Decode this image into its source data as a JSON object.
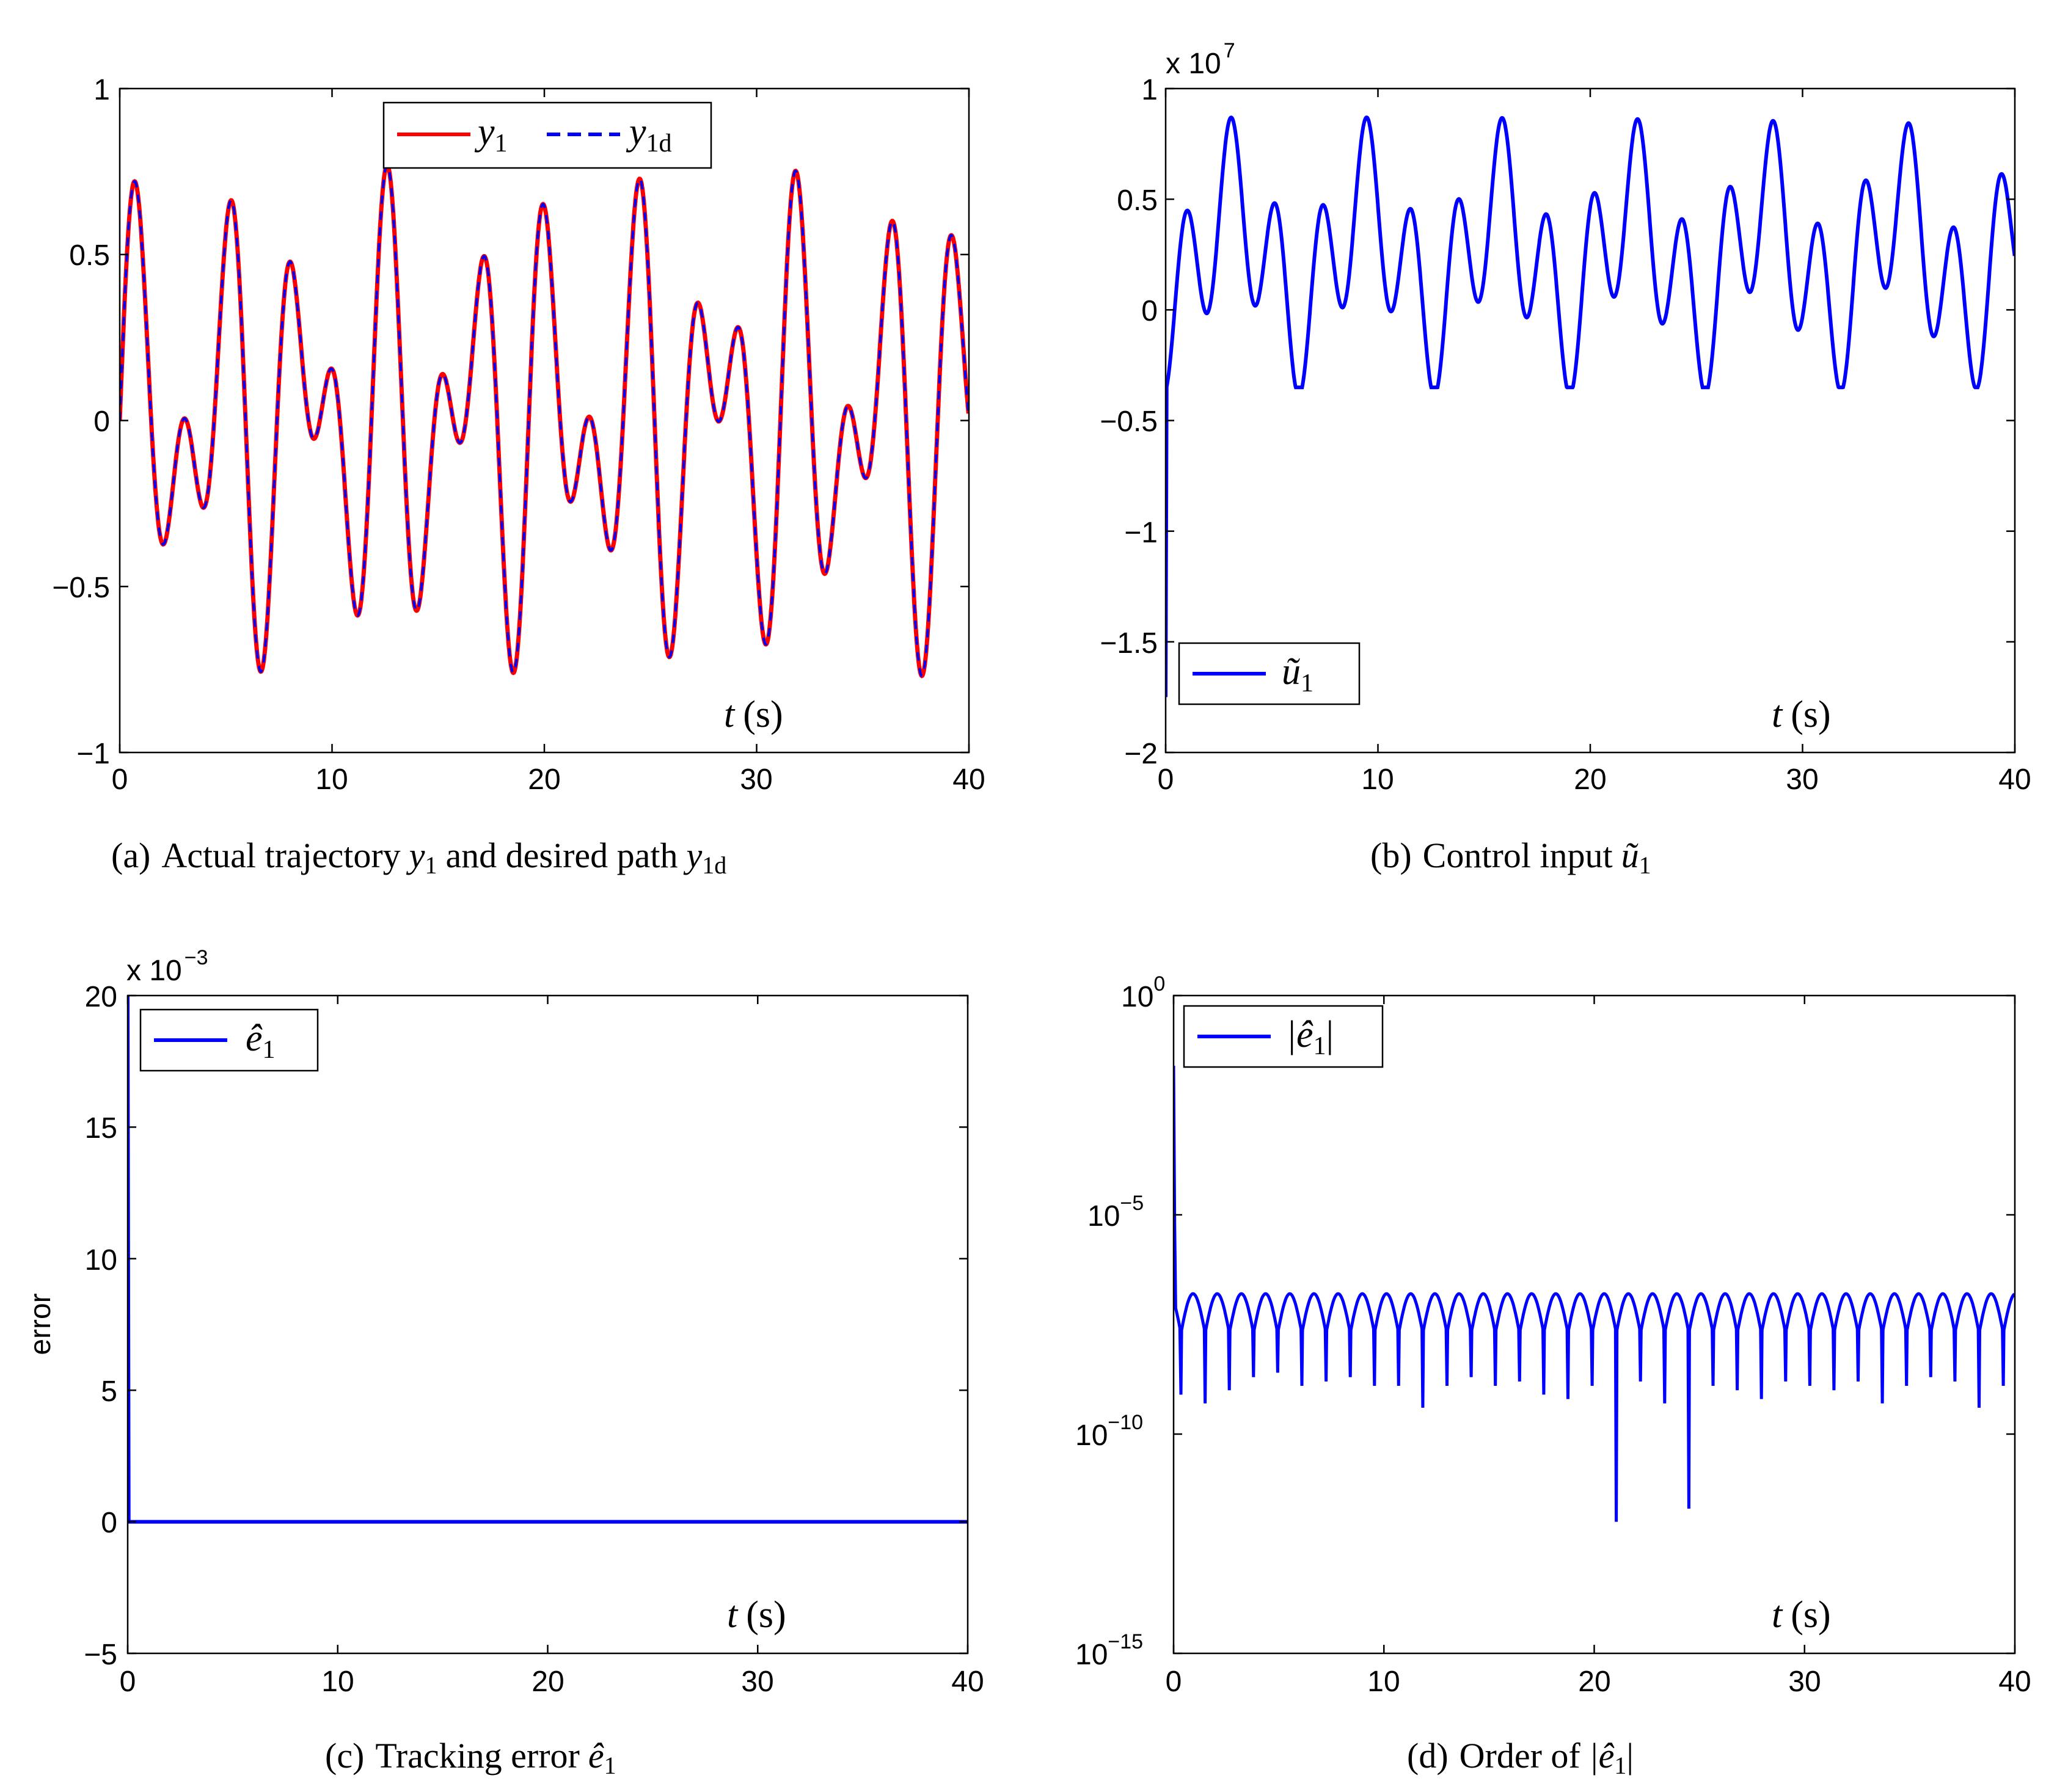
{
  "colors": {
    "red": "#ff0000",
    "blue": "#0000ff",
    "axis": "#000000"
  },
  "chart_data": [
    {
      "id": "a",
      "type": "line",
      "title": "",
      "caption_prefix": "(a)",
      "caption_text": "Actual trajectory",
      "caption_mid": "and desired path",
      "caption_sym1": "y",
      "caption_sub1": "1",
      "caption_sym2": "y",
      "caption_sub2": "1d",
      "xlabel_t": "t",
      "xlabel_unit": "(s)",
      "ylabel": "",
      "xlim": [
        0,
        40
      ],
      "ylim": [
        -1,
        1
      ],
      "xticks": [
        "0",
        "10",
        "20",
        "30",
        "40"
      ],
      "yticks": [
        "−1",
        "−0.5",
        "0",
        "0.5",
        "1"
      ],
      "legend": [
        {
          "name": "y",
          "sub": "1",
          "style": "solid",
          "color": "red"
        },
        {
          "name": "y",
          "sub": "1d",
          "style": "dashed",
          "color": "blue"
        }
      ],
      "legend_position": "top-center",
      "series": [
        {
          "name": "y1",
          "expression": "0.5*(sin(t)+sin(1.6*t)) approx",
          "color": "red",
          "range": [
            -0.77,
            0.77
          ]
        },
        {
          "name": "y1d",
          "expression": "same as y1",
          "color": "blue",
          "range": [
            -0.77,
            0.77
          ]
        }
      ]
    },
    {
      "id": "b",
      "type": "line",
      "caption_prefix": "(b)",
      "caption_text": "Control input",
      "caption_sym": "ũ",
      "caption_sub": "1",
      "xlabel_t": "t",
      "xlabel_unit": "(s)",
      "multiplier_base": "x 10",
      "multiplier_exp": "7",
      "xlim": [
        0,
        40
      ],
      "ylim": [
        -2,
        1
      ],
      "xticks": [
        "0",
        "10",
        "20",
        "30",
        "40"
      ],
      "yticks": [
        "−2",
        "−1.5",
        "−1",
        "−0.5",
        "0",
        "0.5",
        "1"
      ],
      "legend": [
        {
          "name": "ũ",
          "sub": "1",
          "style": "solid",
          "color": "blue"
        }
      ],
      "legend_position": "bottom-left",
      "series": [
        {
          "name": "u1",
          "color": "blue",
          "initial_value": -1.75,
          "range": [
            -0.35,
            0.87
          ],
          "units": "x 10^7"
        }
      ]
    },
    {
      "id": "c",
      "type": "line",
      "caption_prefix": "(c)",
      "caption_text": "Tracking error",
      "caption_sym": "ê",
      "caption_sub": "1",
      "xlabel_t": "t",
      "xlabel_unit": "(s)",
      "ylabel": "error",
      "multiplier_base": "x 10",
      "multiplier_exp": "−3",
      "xlim": [
        0,
        40
      ],
      "ylim": [
        -5,
        20
      ],
      "xticks": [
        "0",
        "10",
        "20",
        "30",
        "40"
      ],
      "yticks": [
        "−5",
        "0",
        "5",
        "10",
        "15",
        "20"
      ],
      "legend": [
        {
          "name": "ê",
          "sub": "1",
          "style": "solid",
          "color": "blue"
        }
      ],
      "legend_position": "top-left",
      "series": [
        {
          "name": "e1",
          "color": "blue",
          "initial_value": 20,
          "steady_value": 0
        }
      ]
    },
    {
      "id": "d",
      "type": "line",
      "scale": "log",
      "caption_prefix": "(d)",
      "caption_text": "Order of",
      "caption_sym": "|ê",
      "caption_sub": "1",
      "caption_close": "|",
      "xlabel_t": "t",
      "xlabel_unit": "(s)",
      "xlim": [
        0,
        40
      ],
      "ylim_log10": [
        -15,
        0
      ],
      "xticks": [
        "0",
        "10",
        "20",
        "30",
        "40"
      ],
      "ytick_base": "10",
      "yticks_exp": [
        "0",
        "−5",
        "−10",
        "−15"
      ],
      "legend": [
        {
          "name": "|ê",
          "sub": "1",
          "close": "|",
          "style": "solid",
          "color": "blue"
        }
      ],
      "legend_position": "top-left",
      "series": [
        {
          "name": "|e1|",
          "color": "blue",
          "initial_log10": -1.6,
          "peak_log10": -6.8,
          "dip_log10_range": [
            -12.5,
            -8.5
          ],
          "oscillation_period_s": 1.15
        }
      ]
    }
  ]
}
